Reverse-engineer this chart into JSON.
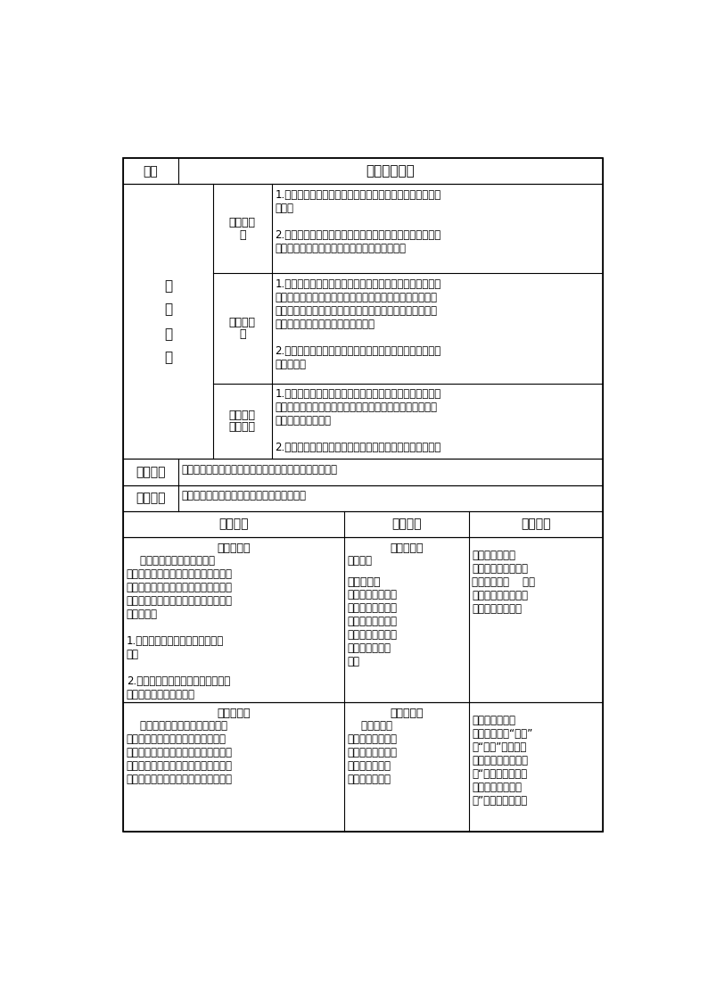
{
  "page_bg": "#ffffff",
  "border_color": "#000000",
  "font_color": "#000000",
  "header_col1": "课题",
  "header_col2": "运动的水分子",
  "left_label_chars": [
    "学",
    "习",
    "目",
    "标"
  ],
  "sublabel_know": [
    "知识与技",
    "能"
  ],
  "sublabel_proc": [
    "过程与方",
    "法"
  ],
  "sublabel_emot": [
    "情感态度",
    "与价值观"
  ],
  "content_know": "1.通过分析水分子的运动和水三态变化的关系，认识分子的\n特征。\n\n2.通过对分子的性质的理解，能从微观的角度认识物质的构\n成，学会用分子的观点解释生活中的常见现象。",
  "content_proc": "1.通过探索酒精沸腾后体积变大的学生演示实验类推水沸腾\n后体积也变大的猜想和对不同状态水中水分子的排列方式和\n运动方式的认识，让学生初步体验宏观现象与微观世界的联\n系；会用课本理论来解释日常现象。\n\n2.通过学生探究实验，让学生体会运用化学实验验证自己猜\n想的乐趣。",
  "content_emot": "1.培养学生用宏观和微观相联系的思维方式看待物质，形成\n物质世界的微粒观。通过一系列的实验探究使学生的动手、\n动脑能力得到提高。\n\n2.使学生懂得关注评价他人的见解，分享他人的研究成果。",
  "key_point_label": "学习重点",
  "key_point_content": "通过水的三态变化引出分子的特征，帮助学生建立微粒观",
  "difficulty_label": "学习难点",
  "difficulty_content": "利用分子的观念来解释生活中的一些化学现象",
  "act_header": [
    "教师活动",
    "学生活动",
    "设计意图"
  ],
  "act1_teacher_title": "情景导入：",
  "act1_teacher_body": "    我们的探究之旅马上就要开\n始了，同学们你们准备好了吗？老师制\n作了一段精美的视频，和大家一块欣赏\n一下，在欣赏美景的同时请同学们考虑\n两个问题：\n\n1.在这些美景中共同涉及了哪种物\n质？\n\n2.体现在视频中的是这种物质的什么\n不同？（教师播放视频）",
  "act1_student_title1": "学生回答：",
  "act1_student_body1": "水、状态",
  "act1_student_title2": "产生兴趣：",
  "act1_student_body2": "（阅读）水是生命\n之源，它有时幻化\n作朵朵白云，有时\n变为绵绵细雨，有\n时又变成皆皆白\n雪。",
  "act1_design": "引发学生强烈的\n认知冲突，激发学生\n的学习兴趣。    从宏\n观物质入手，成功地\n从宏观引入微观。",
  "act2_teacher_title": "轻车熟路：",
  "act2_teacher_body": "    首先让我们一起走进一滴水的世\n界。我们知道水是由许多水分子组成\n的，水是一种宏观物质，它看得见、摸\n得着，而水分子却是一种微观粒子（简\n称微粒），为什么呢？原因是水分子非",
  "act2_student_title": "浮想联翔：",
  "act2_student_body": "    经过第一单\n元的学习，结合先\n前对微观的理解，\n在教师讲解后产\n生惊讶等丰富情",
  "act2_design": "温故知新，让学\n生进一步理解“宏观”\n与“微观”，并以水\n分子为例，让学生形\n成“任何宏观物质都\n是由无数微粒构成\n的”这一基本观点，"
}
